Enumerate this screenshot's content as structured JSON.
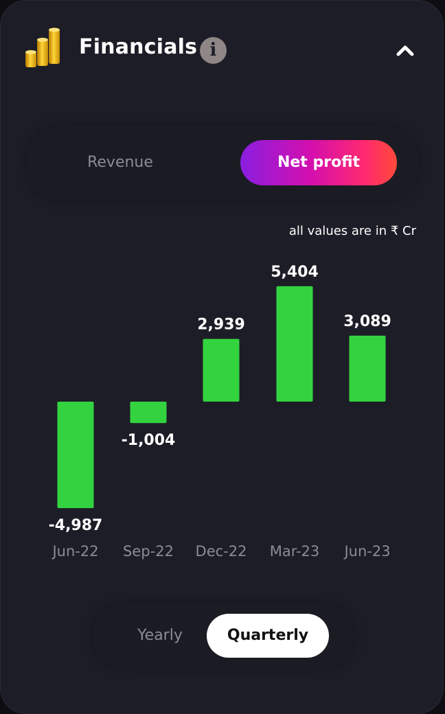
{
  "header": {
    "title": "Financials",
    "info_icon": "info-icon",
    "collapse_icon": "chevron-up-icon",
    "logo_icon": "gold-coins-stack-icon"
  },
  "metric_tabs": {
    "items": [
      {
        "label": "Revenue",
        "active": false
      },
      {
        "label": "Net profit",
        "active": true
      }
    ]
  },
  "units_note": "all values are in ₹ Cr",
  "chart_data": {
    "type": "bar",
    "categories": [
      "Jun-22",
      "Sep-22",
      "Dec-22",
      "Mar-23",
      "Jun-23"
    ],
    "values": [
      -4987,
      -1004,
      2939,
      5404,
      3089
    ],
    "value_labels": [
      "-4,987",
      "-1,004",
      "2,939",
      "5,404",
      "3,089"
    ],
    "bar_color": "#33d33f",
    "grid": false
  },
  "period_tabs": {
    "items": [
      {
        "label": "Yearly",
        "active": false
      },
      {
        "label": "Quarterly",
        "active": true
      }
    ]
  },
  "colors": {
    "background": "#1d1d27",
    "active_gradient": [
      "#8a1ee0",
      "#d40fae",
      "#ff2a6e",
      "#ff4a3a"
    ],
    "bar": "#33d33f"
  }
}
